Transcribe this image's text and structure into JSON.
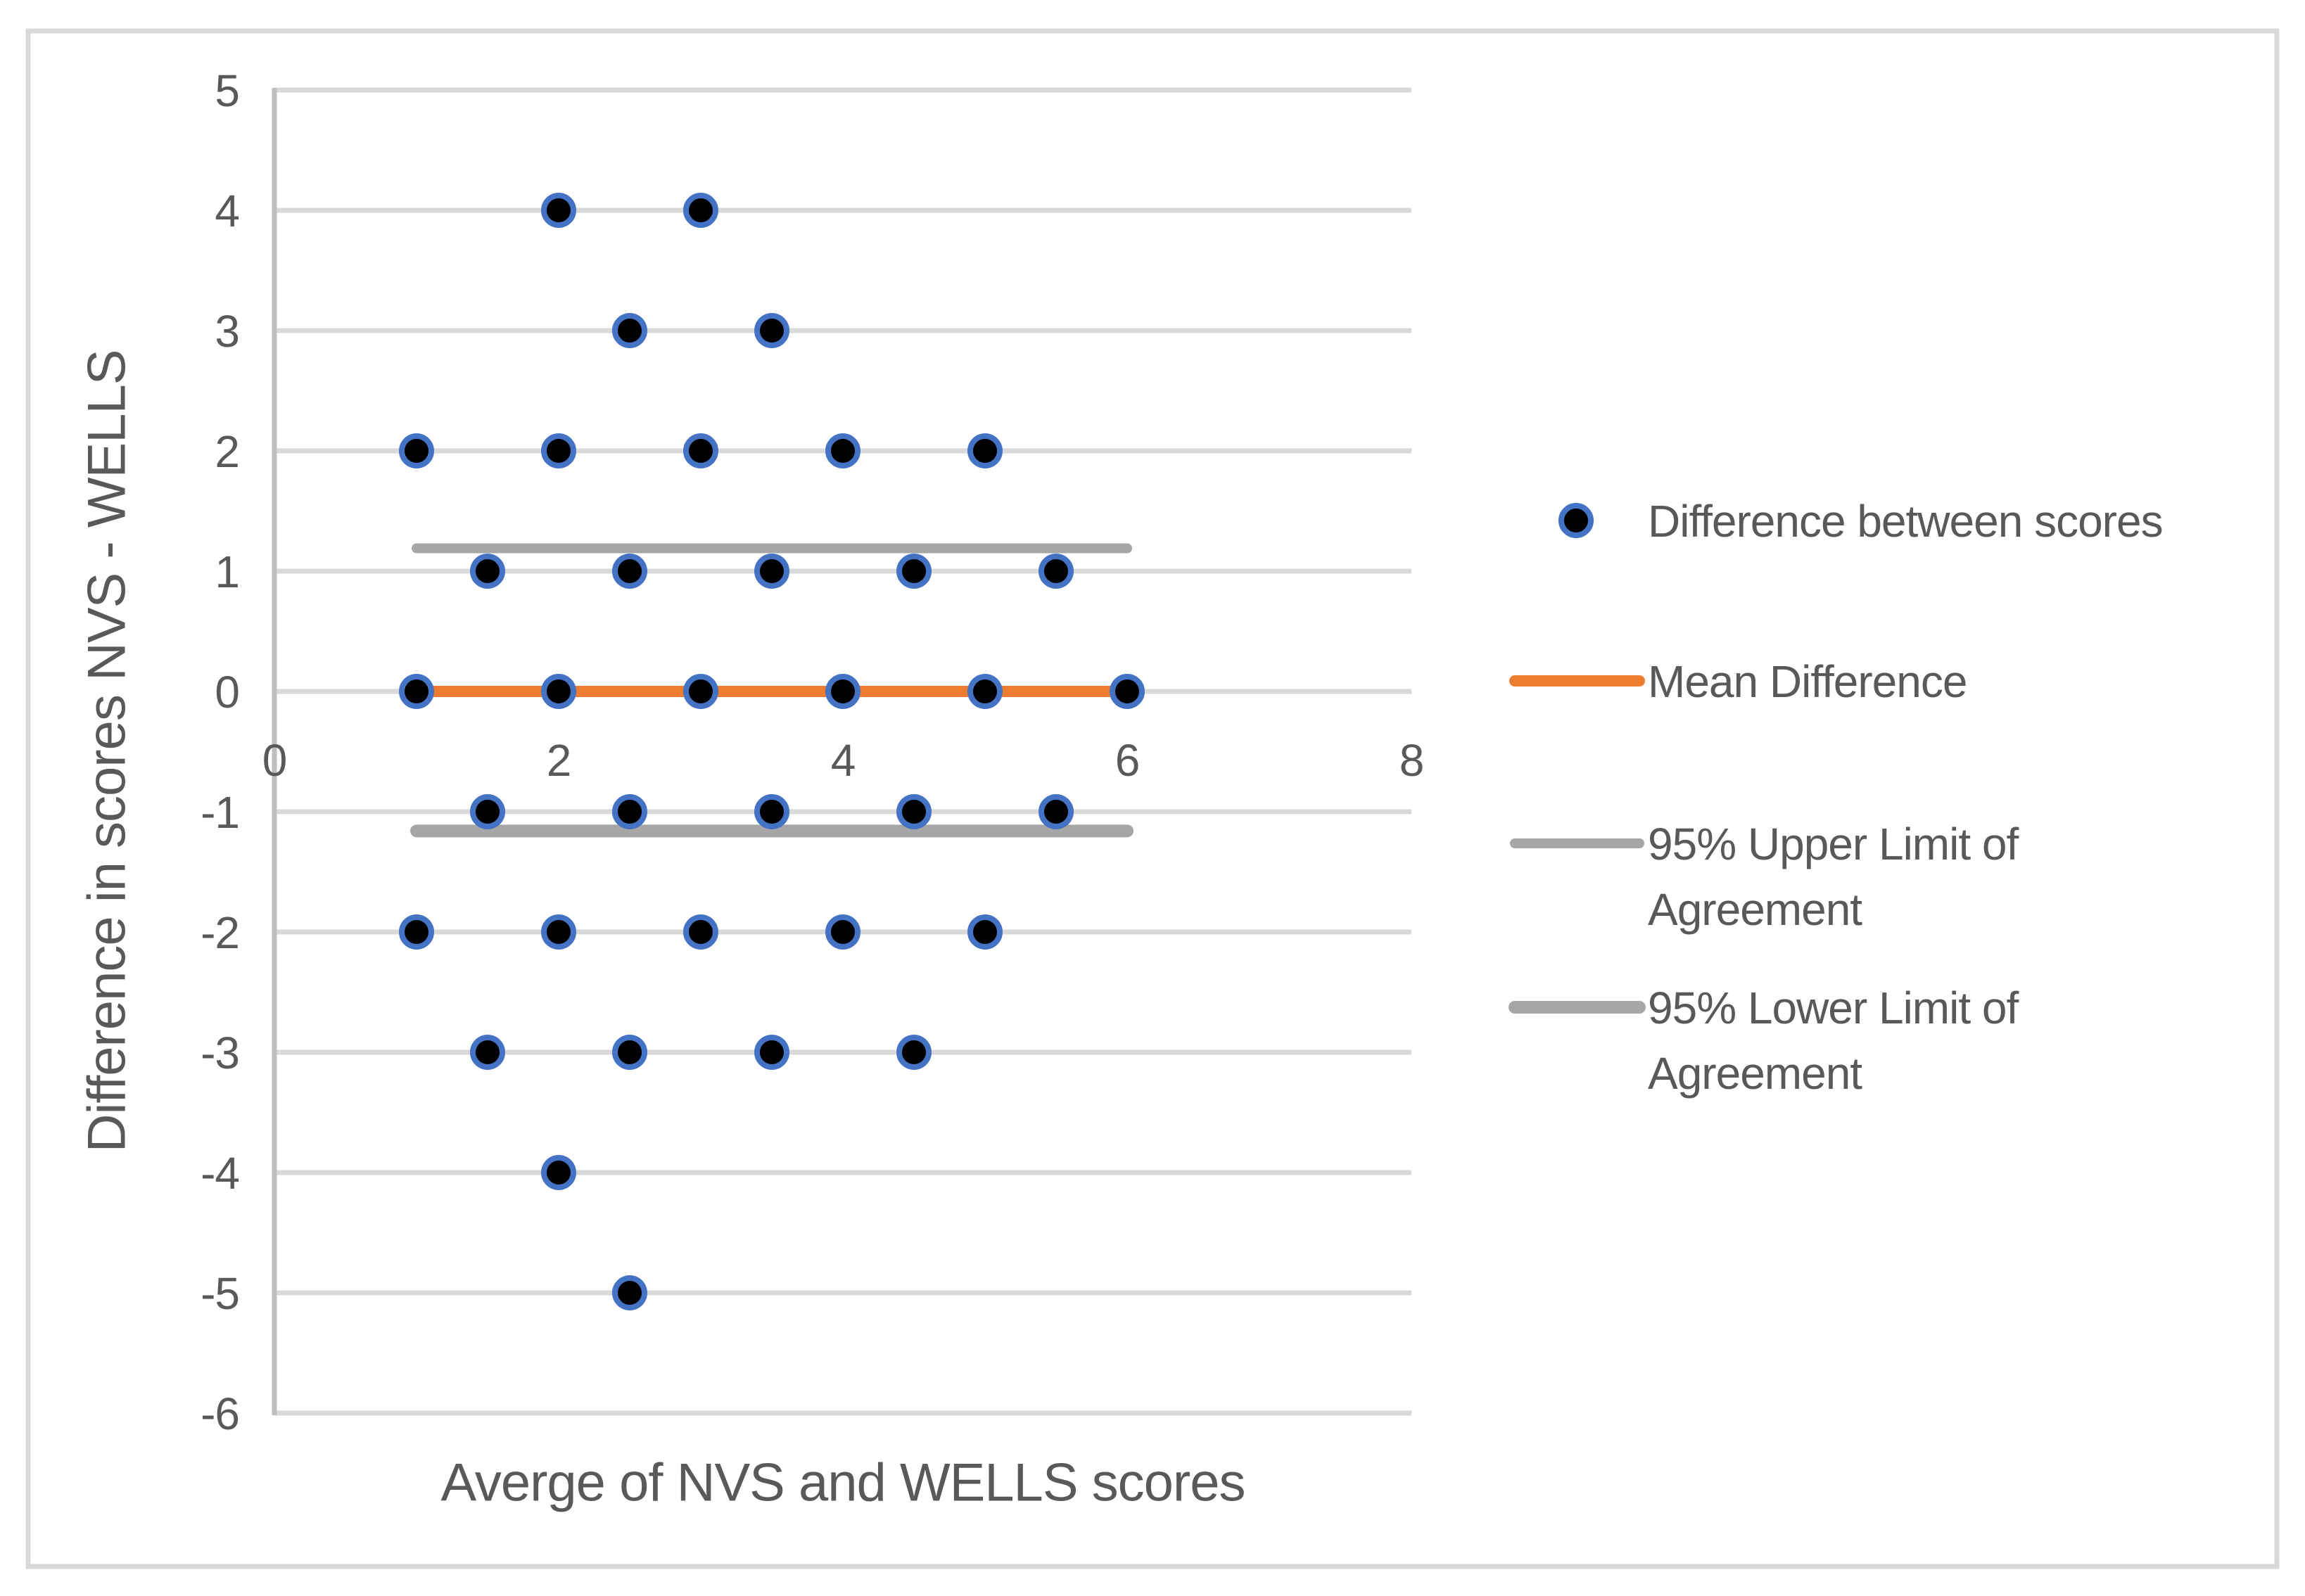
{
  "chart_data": {
    "type": "scatter",
    "title": "",
    "xlabel": "Averge of NVS and WELLS scores",
    "ylabel": "Difference in scores NVS - WELLS",
    "xlim": [
      0,
      8
    ],
    "ylim": [
      -6,
      5
    ],
    "x_ticks": [
      "0",
      "2",
      "4",
      "6",
      "8"
    ],
    "y_ticks": [
      "5",
      "4",
      "3",
      "2",
      "1",
      "0",
      "-1",
      "-2",
      "-3",
      "-4",
      "-5",
      "-6"
    ],
    "grid": "horizontal",
    "legend_position": "right",
    "series": [
      {
        "name": "Difference between scores",
        "type": "scatter",
        "points": [
          [
            2,
            4
          ],
          [
            3,
            4
          ],
          [
            2.5,
            3
          ],
          [
            3.5,
            3
          ],
          [
            1,
            2
          ],
          [
            2,
            2
          ],
          [
            3,
            2
          ],
          [
            4,
            2
          ],
          [
            5,
            2
          ],
          [
            1.5,
            1
          ],
          [
            2.5,
            1
          ],
          [
            3.5,
            1
          ],
          [
            4.5,
            1
          ],
          [
            5.5,
            1
          ],
          [
            1,
            0
          ],
          [
            2,
            0
          ],
          [
            3,
            0
          ],
          [
            4,
            0
          ],
          [
            5,
            0
          ],
          [
            6,
            0
          ],
          [
            1.5,
            -1
          ],
          [
            2.5,
            -1
          ],
          [
            3.5,
            -1
          ],
          [
            4.5,
            -1
          ],
          [
            5.5,
            -1
          ],
          [
            1,
            -2
          ],
          [
            2,
            -2
          ],
          [
            3,
            -2
          ],
          [
            4,
            -2
          ],
          [
            5,
            -2
          ],
          [
            1.5,
            -3
          ],
          [
            2.5,
            -3
          ],
          [
            3.5,
            -3
          ],
          [
            4.5,
            -3
          ],
          [
            2,
            -4
          ],
          [
            2.5,
            -5
          ]
        ]
      },
      {
        "name": "Mean Difference",
        "type": "line",
        "y": 0,
        "x_start": 1,
        "x_end": 6,
        "color": "#ED7D31",
        "thickness": 16
      },
      {
        "name": "95% Upper Limit of Agreement",
        "type": "line",
        "y": 1.19,
        "x_start": 1,
        "x_end": 6,
        "color": "#A6A6A6",
        "thickness": 14
      },
      {
        "name": "95% Lower Limit of Agreement",
        "type": "line",
        "y": -1.16,
        "x_start": 1,
        "x_end": 6,
        "color": "#A6A6A6",
        "thickness": 18
      }
    ],
    "legend": {
      "position": "right",
      "items": [
        {
          "label": "Difference between scores",
          "lines": [
            "Difference between scores"
          ],
          "swatch": "marker"
        },
        {
          "label": "Mean Difference",
          "lines": [
            "Mean Difference"
          ],
          "swatch": "line",
          "color": "#ED7D31",
          "thickness": 16
        },
        {
          "label": "95% Upper Limit of Agreement",
          "lines": [
            "95% Upper Limit of",
            "Agreement"
          ],
          "swatch": "line",
          "color": "#A6A6A6",
          "thickness": 14
        },
        {
          "label": "95% Lower Limit of Agreement",
          "lines": [
            "95% Lower Limit of",
            "Agreement"
          ],
          "swatch": "line",
          "color": "#A6A6A6",
          "thickness": 18
        }
      ]
    }
  },
  "colors": {
    "marker_ring": "#4472C4",
    "marker_fill": "#000000",
    "mean_line": "#ED7D31",
    "limit_line": "#A6A6A6",
    "gridline": "#D9D9D9",
    "axis_line": "#BFBFBF",
    "text": "#595959",
    "chart_border": "#D9D9D9",
    "background": "#FFFFFF"
  }
}
